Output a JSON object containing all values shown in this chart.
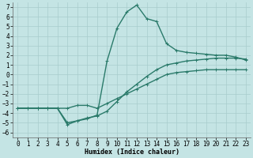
{
  "xlabel": "Humidex (Indice chaleur)",
  "bg_color": "#c4e4e4",
  "line_color": "#2a7a6a",
  "grid_color": "#a8cccc",
  "xlim": [
    -0.5,
    23.5
  ],
  "ylim": [
    -6.5,
    7.5
  ],
  "xticks": [
    0,
    1,
    2,
    3,
    4,
    5,
    6,
    7,
    8,
    9,
    10,
    11,
    12,
    13,
    14,
    15,
    16,
    17,
    18,
    19,
    20,
    21,
    22,
    23
  ],
  "yticks": [
    -6,
    -5,
    -4,
    -3,
    -2,
    -1,
    0,
    1,
    2,
    3,
    4,
    5,
    6,
    7
  ],
  "s1x": [
    0,
    1,
    2,
    3,
    4,
    5,
    6,
    7,
    8,
    9,
    10,
    11,
    12,
    13,
    14,
    15,
    16,
    17,
    18,
    19,
    20,
    21,
    22,
    23
  ],
  "s1y": [
    -3.5,
    -3.5,
    -3.5,
    -3.5,
    -3.5,
    -3.5,
    -3.2,
    -3.2,
    -3.5,
    -3.0,
    -2.5,
    -2.0,
    -1.5,
    -1.0,
    -0.5,
    0.0,
    0.2,
    0.3,
    0.4,
    0.5,
    0.5,
    0.5,
    0.5,
    0.5
  ],
  "s2x": [
    0,
    1,
    2,
    3,
    4,
    5,
    6,
    7,
    8,
    9,
    10,
    11,
    12,
    13,
    14,
    15,
    16,
    17,
    18,
    19,
    20,
    21,
    22,
    23
  ],
  "s2y": [
    -3.5,
    -3.5,
    -3.5,
    -3.5,
    -3.5,
    -5.0,
    -4.8,
    -4.5,
    -4.3,
    -3.8,
    -2.8,
    -1.8,
    -1.0,
    -0.2,
    0.5,
    1.0,
    1.2,
    1.4,
    1.5,
    1.6,
    1.7,
    1.7,
    1.7,
    1.6
  ],
  "s3x": [
    0,
    2,
    3,
    4,
    5,
    6,
    7,
    8,
    9,
    10,
    11,
    12,
    13,
    14,
    15,
    16,
    17,
    18,
    19,
    20,
    21,
    22,
    23
  ],
  "s3y": [
    -3.5,
    -3.5,
    -3.5,
    -3.5,
    -5.2,
    -4.8,
    -4.6,
    -4.2,
    1.4,
    4.8,
    6.5,
    7.2,
    5.8,
    5.5,
    3.2,
    2.5,
    2.3,
    2.2,
    2.1,
    2.0,
    2.0,
    1.8,
    1.5
  ],
  "marker_size": 3.5,
  "line_width": 1.0,
  "font_size": 5.5
}
